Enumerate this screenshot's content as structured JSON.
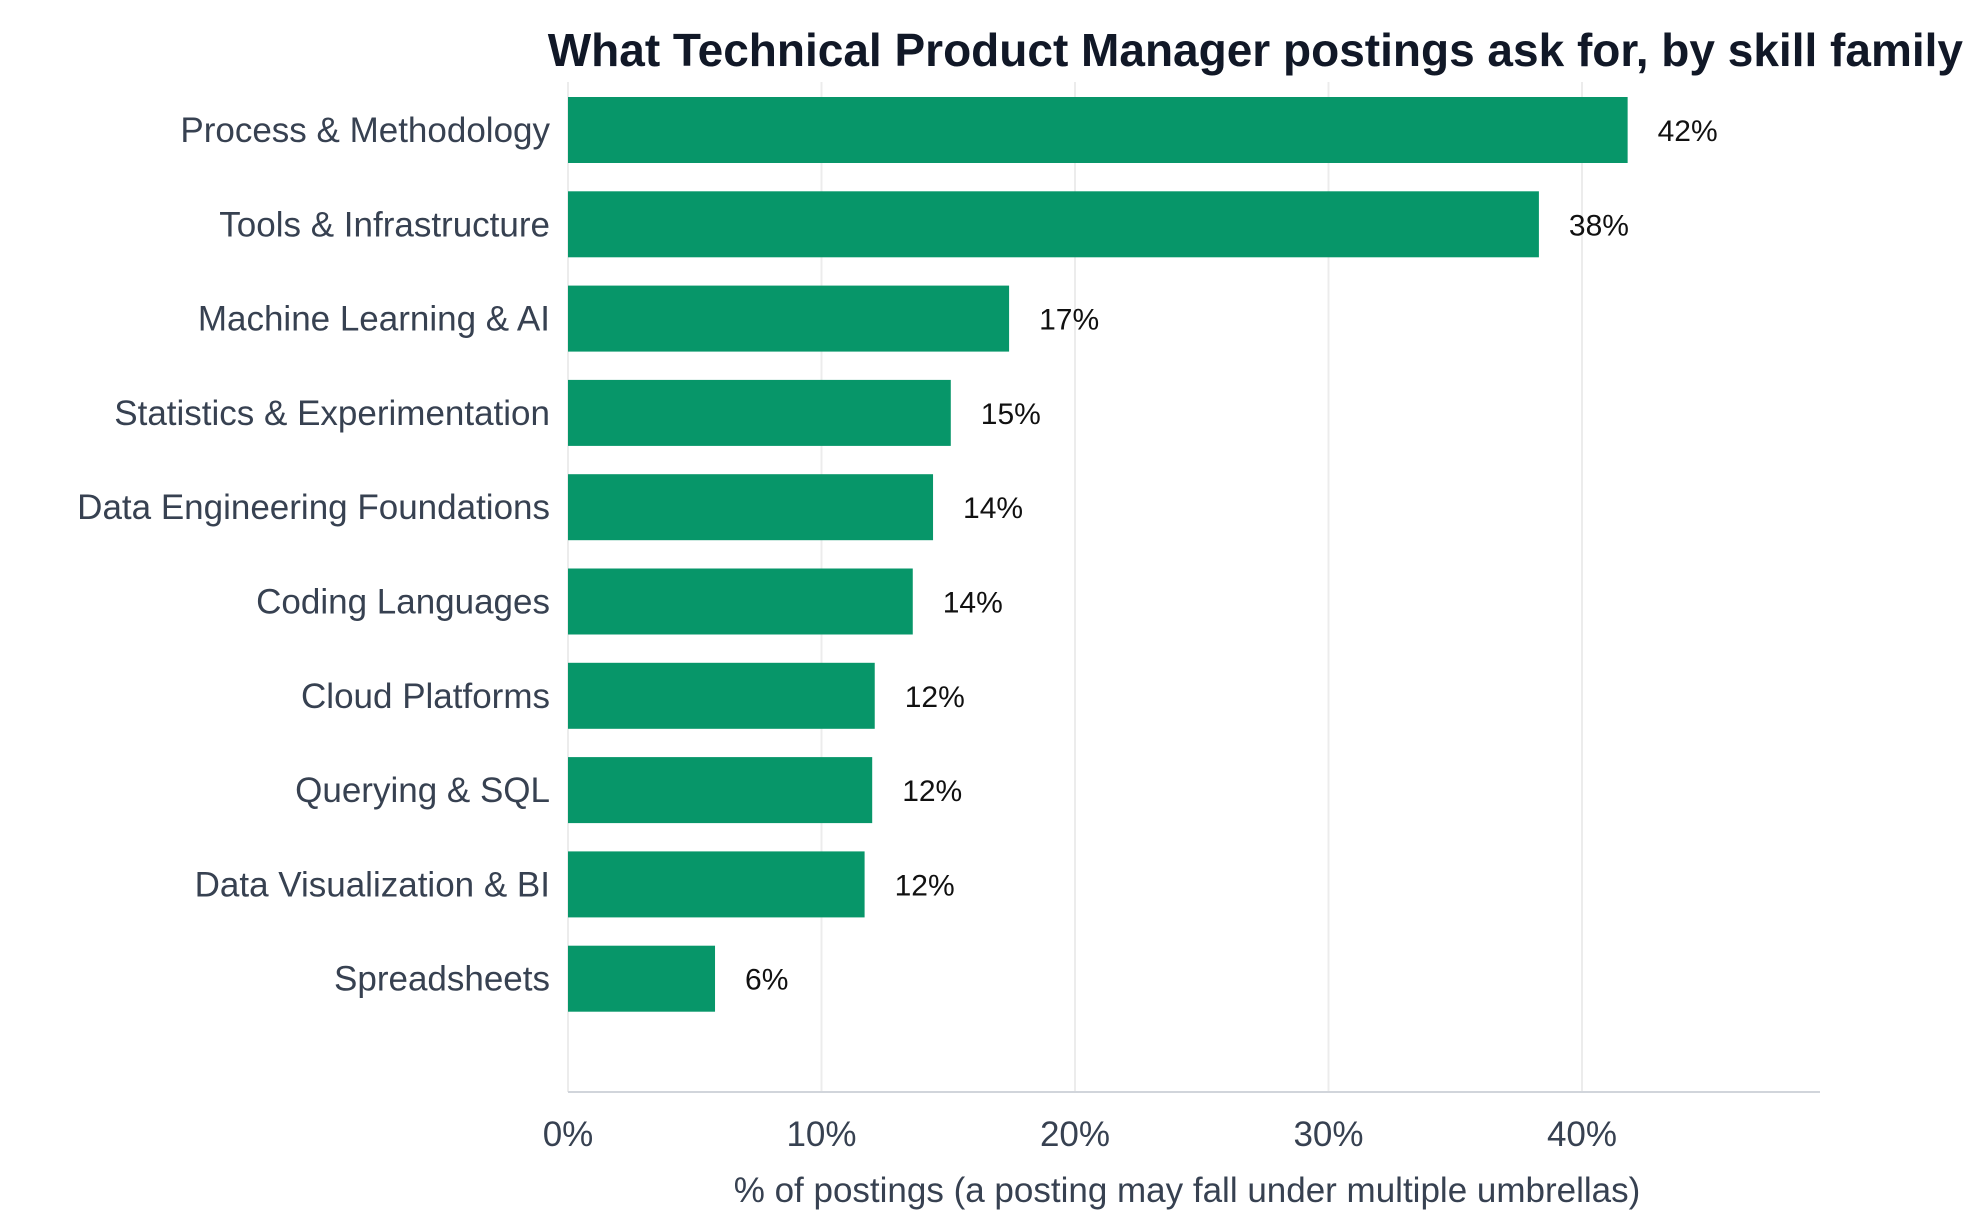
{
  "chart_data": {
    "type": "bar",
    "orientation": "horizontal",
    "title": "What Technical Product Manager postings ask for, by skill family",
    "xlabel": "% of postings (a posting may fall under multiple umbrellas)",
    "ylabel": "",
    "categories": [
      "Process & Methodology",
      "Tools & Infrastructure",
      "Machine Learning & AI",
      "Statistics & Experimentation",
      "Data Engineering Foundations",
      "Coding Languages",
      "Cloud Platforms",
      "Querying & SQL",
      "Data Visualization & BI",
      "Spreadsheets"
    ],
    "values": [
      41.8,
      38.3,
      17.4,
      15.1,
      14.4,
      13.6,
      12.1,
      12.0,
      11.7,
      5.8
    ],
    "data_labels": [
      "42%",
      "38%",
      "17%",
      "15%",
      "14%",
      "14%",
      "12%",
      "12%",
      "12%",
      "6%"
    ],
    "xlim": [
      0,
      49.4
    ],
    "xticks": [
      0,
      10,
      20,
      30,
      40
    ],
    "xtick_labels": [
      "0%",
      "10%",
      "20%",
      "30%",
      "40%"
    ],
    "grid": "vertical",
    "legend": "none",
    "bar_color": "#079669",
    "grid_color": "#ececec",
    "axis_color": "#d1d5db"
  }
}
